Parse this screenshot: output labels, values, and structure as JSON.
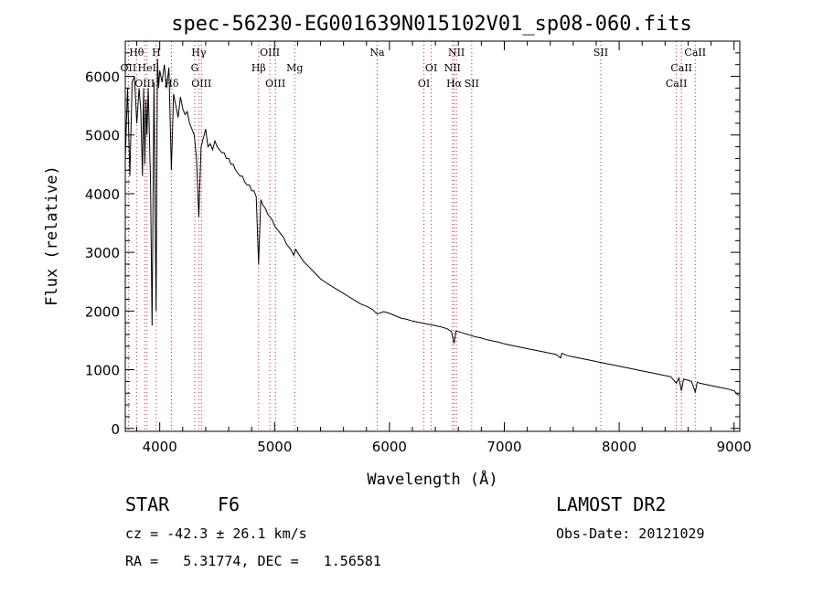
{
  "chart_data": {
    "type": "line",
    "title": "spec-56230-EG001639N015102V01_sp08-060.fits",
    "xlabel": "Wavelength (Å)",
    "ylabel": "Flux (relative)",
    "xlim": [
      3700,
      9050
    ],
    "ylim": [
      -50,
      6600
    ],
    "xticks": [
      4000,
      5000,
      6000,
      7000,
      8000,
      9000
    ],
    "yticks": [
      0,
      1000,
      2000,
      3000,
      4000,
      5000,
      6000
    ],
    "grid": false,
    "series": [
      {
        "name": "spectrum",
        "x": [
          3700,
          3720,
          3740,
          3760,
          3780,
          3800,
          3820,
          3835,
          3850,
          3860,
          3870,
          3880,
          3889,
          3900,
          3920,
          3933,
          3950,
          3968,
          3980,
          3990,
          4000,
          4020,
          4040,
          4060,
          4080,
          4101,
          4120,
          4140,
          4160,
          4180,
          4200,
          4220,
          4240,
          4260,
          4280,
          4300,
          4320,
          4340,
          4360,
          4380,
          4400,
          4420,
          4440,
          4460,
          4480,
          4500,
          4520,
          4540,
          4560,
          4580,
          4600,
          4620,
          4640,
          4660,
          4680,
          4700,
          4720,
          4740,
          4760,
          4780,
          4800,
          4820,
          4840,
          4861,
          4880,
          4900,
          4920,
          4940,
          4960,
          4980,
          5000,
          5020,
          5040,
          5060,
          5080,
          5100,
          5120,
          5140,
          5167,
          5183,
          5200,
          5250,
          5300,
          5350,
          5400,
          5450,
          5500,
          5550,
          5600,
          5650,
          5700,
          5750,
          5800,
          5850,
          5893,
          5950,
          6000,
          6050,
          6100,
          6150,
          6200,
          6250,
          6300,
          6350,
          6400,
          6450,
          6500,
          6540,
          6563,
          6580,
          6600,
          6650,
          6700,
          6750,
          6800,
          6850,
          6900,
          6950,
          7000,
          7050,
          7100,
          7150,
          7200,
          7250,
          7300,
          7350,
          7400,
          7450,
          7490,
          7500,
          7550,
          7600,
          7650,
          7700,
          7750,
          7800,
          7850,
          7900,
          7950,
          8000,
          8050,
          8100,
          8150,
          8200,
          8250,
          8300,
          8350,
          8400,
          8450,
          8498,
          8520,
          8542,
          8560,
          8600,
          8630,
          8662,
          8680,
          8700,
          8750,
          8800,
          8850,
          8900,
          8950,
          9000,
          9020,
          9040
        ],
        "y": [
          4600,
          5800,
          4300,
          5900,
          6000,
          5200,
          5800,
          5400,
          4300,
          5800,
          4500,
          5600,
          5000,
          5800,
          4200,
          1750,
          5900,
          2000,
          6300,
          5800,
          6100,
          5900,
          6200,
          5800,
          6150,
          4400,
          5700,
          5500,
          5300,
          5650,
          5450,
          5350,
          5400,
          5200,
          5100,
          5000,
          4600,
          3600,
          4800,
          4950,
          5100,
          4800,
          4850,
          4750,
          4900,
          4800,
          4750,
          4700,
          4700,
          4600,
          4600,
          4500,
          4500,
          4400,
          4350,
          4300,
          4300,
          4200,
          4150,
          4150,
          4050,
          4050,
          3950,
          2800,
          3900,
          3800,
          3750,
          3650,
          3600,
          3550,
          3450,
          3400,
          3350,
          3300,
          3250,
          3150,
          3100,
          3050,
          2950,
          3050,
          3000,
          2850,
          2750,
          2650,
          2550,
          2480,
          2420,
          2360,
          2300,
          2240,
          2180,
          2120,
          2080,
          2030,
          1950,
          1990,
          1960,
          1920,
          1880,
          1860,
          1830,
          1810,
          1790,
          1770,
          1750,
          1730,
          1700,
          1650,
          1450,
          1660,
          1650,
          1620,
          1590,
          1560,
          1540,
          1510,
          1490,
          1470,
          1440,
          1420,
          1400,
          1380,
          1360,
          1340,
          1320,
          1300,
          1280,
          1260,
          1200,
          1280,
          1240,
          1220,
          1200,
          1180,
          1160,
          1140,
          1120,
          1100,
          1080,
          1060,
          1040,
          1020,
          1000,
          980,
          960,
          940,
          920,
          900,
          880,
          770,
          860,
          640,
          840,
          820,
          800,
          620,
          790,
          770,
          750,
          730,
          710,
          690,
          670,
          640,
          600,
          560
        ]
      }
    ],
    "lines": [
      {
        "label": "Hθ",
        "wl": 3798,
        "row": 0
      },
      {
        "label": "H",
        "wl": 3970,
        "row": 0
      },
      {
        "label": "Hγ",
        "wl": 4340,
        "row": 0
      },
      {
        "label": "OIII",
        "wl": 4959,
        "row": 0
      },
      {
        "label": "Na",
        "wl": 5893,
        "row": 0
      },
      {
        "label": "NII",
        "wl": 6583,
        "row": 0
      },
      {
        "label": "SII",
        "wl": 7840,
        "row": 0
      },
      {
        "label": "CaII",
        "wl": 8662,
        "row": 0
      },
      {
        "label": "OII",
        "wl": 3727,
        "row": 1
      },
      {
        "label": "HeI",
        "wl": 3889,
        "row": 1
      },
      {
        "label": "G",
        "wl": 4305,
        "row": 1
      },
      {
        "label": "Hβ",
        "wl": 4861,
        "row": 1
      },
      {
        "label": "Mg",
        "wl": 5175,
        "row": 1
      },
      {
        "label": "OI",
        "wl": 6364,
        "row": 1
      },
      {
        "label": "NII",
        "wl": 6548,
        "row": 1
      },
      {
        "label": "CaII",
        "wl": 8542,
        "row": 1
      },
      {
        "label": "OIII",
        "wl": 3869,
        "row": 2
      },
      {
        "label": "Hδ",
        "wl": 4101,
        "row": 2
      },
      {
        "label": "OIII",
        "wl": 4363,
        "row": 2
      },
      {
        "label": "OIII",
        "wl": 5007,
        "row": 2
      },
      {
        "label": "OI",
        "wl": 6300,
        "row": 2
      },
      {
        "label": "Hα",
        "wl": 6563,
        "row": 2
      },
      {
        "label": "SII",
        "wl": 6716,
        "row": 2
      },
      {
        "label": "CaII",
        "wl": 8498,
        "row": 2
      }
    ]
  },
  "info": {
    "class_label": "STAR",
    "subclass": "F6",
    "survey": "LAMOST DR2",
    "velocity": "cz = -42.3 ± 26.1 km/s",
    "obs_date": "Obs-Date: 20121029",
    "coords": "RA =   5.31774, DEC =   1.56581"
  }
}
